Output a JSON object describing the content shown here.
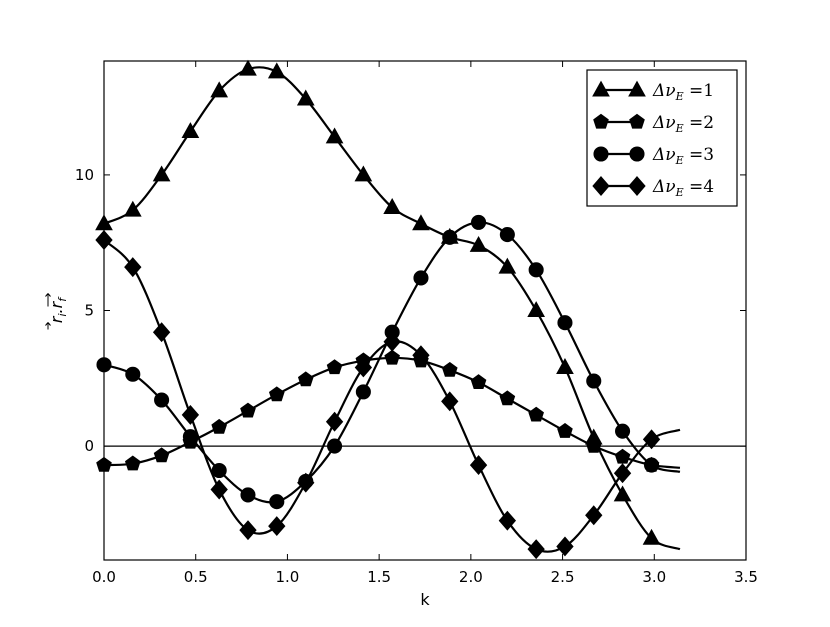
{
  "chart_data": {
    "type": "line",
    "xlabel": "k",
    "ylabel": "r→i.r→f",
    "xlim": [
      0,
      3.5
    ],
    "ylim": [
      -4.2,
      14.2
    ],
    "xticks": [
      "0.0",
      "0.5",
      "1.0",
      "1.5",
      "2.0",
      "2.5",
      "3.0",
      "3.5"
    ],
    "yticks": [
      "0",
      "5",
      "10"
    ],
    "grid": false,
    "legend": {
      "placement": "top-right",
      "entries": [
        "Δν_E =1",
        "Δν_E =2",
        "Δν_E =3",
        "Δν_E =4"
      ]
    },
    "reference_line_y": 0,
    "x": [
      0.0,
      0.157,
      0.314,
      0.471,
      0.628,
      0.785,
      0.942,
      1.1,
      1.257,
      1.414,
      1.571,
      1.728,
      1.885,
      2.042,
      2.199,
      2.356,
      2.513,
      2.67,
      2.827,
      2.985
    ],
    "series": [
      {
        "name": "Δν_E =1",
        "marker": "triangle",
        "curve_end": [
          3.14,
          -3.8
        ],
        "values": [
          8.2,
          8.7,
          10.0,
          11.6,
          13.1,
          13.9,
          13.8,
          12.8,
          11.4,
          10.0,
          8.8,
          8.2,
          7.7,
          7.4,
          6.6,
          5.0,
          2.9,
          0.3,
          -1.8,
          -3.4
        ]
      },
      {
        "name": "Δν_E =2",
        "marker": "pentagon",
        "curve_end": [
          3.14,
          -0.8
        ],
        "values": [
          -0.7,
          -0.65,
          -0.35,
          0.15,
          0.7,
          1.3,
          1.9,
          2.45,
          2.9,
          3.15,
          3.25,
          3.15,
          2.8,
          2.35,
          1.75,
          1.15,
          0.55,
          0.0,
          -0.4,
          -0.7
        ]
      },
      {
        "name": "Δν_E =3",
        "marker": "circle",
        "curve_end": [
          3.14,
          -0.95
        ],
        "values": [
          3.0,
          2.65,
          1.7,
          0.35,
          -0.9,
          -1.8,
          -2.05,
          -1.3,
          0.0,
          2.0,
          4.2,
          6.2,
          7.7,
          8.25,
          7.8,
          6.5,
          4.55,
          2.4,
          0.55,
          -0.7
        ]
      },
      {
        "name": "Δν_E =4",
        "marker": "diamond",
        "curve_end": [
          3.14,
          0.6
        ],
        "values": [
          7.6,
          6.6,
          4.2,
          1.15,
          -1.6,
          -3.1,
          -2.95,
          -1.35,
          0.9,
          2.9,
          3.85,
          3.35,
          1.65,
          -0.7,
          -2.75,
          -3.8,
          -3.7,
          -2.55,
          -1.0,
          0.25
        ]
      }
    ]
  }
}
